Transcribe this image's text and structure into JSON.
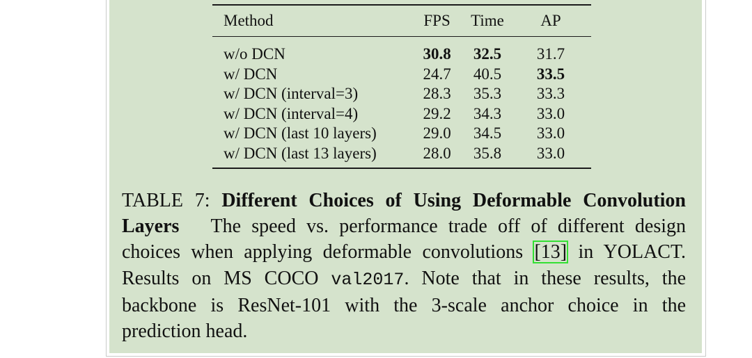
{
  "table": {
    "headers": [
      "Method",
      "FPS",
      "Time",
      "AP"
    ],
    "rows": [
      {
        "method": "w/o DCN",
        "fps": "30.8",
        "time": "32.5",
        "ap": "31.7"
      },
      {
        "method": "w/ DCN",
        "fps": "24.7",
        "time": "40.5",
        "ap": "33.5"
      },
      {
        "method": "w/ DCN (interval=3)",
        "fps": "28.3",
        "time": "35.3",
        "ap": "33.3"
      },
      {
        "method": "w/ DCN (interval=4)",
        "fps": "29.2",
        "time": "34.3",
        "ap": "33.0"
      },
      {
        "method": "w/ DCN (last 10 layers)",
        "fps": "29.0",
        "time": "34.5",
        "ap": "33.0"
      },
      {
        "method": "w/ DCN (last 13 layers)",
        "fps": "28.0",
        "time": "35.8",
        "ap": "33.0"
      }
    ]
  },
  "caption": {
    "label": "TABLE 7:",
    "title": "Different Choices of Using Deformable Convolution Layers",
    "text_before_cite": "The speed vs. performance trade off of different design choices when applying deformable convolutions",
    "cite": "[13]",
    "text_after_cite": "in YOLACT. Results on MS COCO",
    "dataset": "val2017",
    "text_end": ". Note that in these results, the backbone is ResNet-101 with the 3-scale anchor choice in the prediction head."
  },
  "colors": {
    "panel": "#d5e3cc",
    "cite_box": "#33e033"
  }
}
